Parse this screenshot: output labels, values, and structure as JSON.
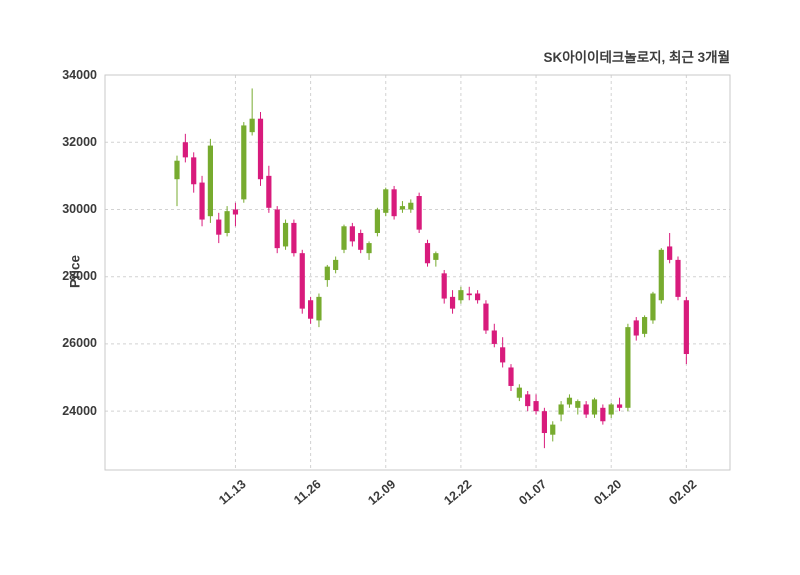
{
  "title": "SK아이이테크놀로지, 최근 3개월",
  "y_axis": {
    "label": "Price"
  },
  "chart_data": {
    "type": "candlestick",
    "title": "SK아이이테크놀로지, 최근 3개월",
    "ylabel": "Price",
    "ylim": [
      22250,
      34000
    ],
    "y_ticks": [
      24000,
      26000,
      28000,
      30000,
      32000,
      34000
    ],
    "x_tick_labels": [
      "11.13",
      "11.26",
      "12.09",
      "12.22",
      "01.07",
      "01.20",
      "02.02"
    ],
    "x_tick_indices": [
      7,
      16,
      25,
      34,
      43,
      52,
      61
    ],
    "grid": "dashed",
    "up_color": "#77ab2f",
    "down_color": "#d81b7c",
    "candles": [
      [
        30900,
        31600,
        30100,
        31450
      ],
      [
        32000,
        32250,
        31400,
        31550
      ],
      [
        31550,
        31700,
        30500,
        30750
      ],
      [
        30800,
        31000,
        29500,
        29700
      ],
      [
        29800,
        32100,
        29600,
        31900
      ],
      [
        29700,
        29900,
        29000,
        29250
      ],
      [
        29300,
        30100,
        29200,
        29950
      ],
      [
        30000,
        30200,
        29500,
        29850
      ],
      [
        30300,
        32600,
        30200,
        32500
      ],
      [
        32300,
        33600,
        32200,
        32700
      ],
      [
        32700,
        32900,
        30700,
        30900
      ],
      [
        31000,
        31300,
        29900,
        30050
      ],
      [
        30000,
        30100,
        28700,
        28850
      ],
      [
        28900,
        29700,
        28800,
        29600
      ],
      [
        29600,
        29700,
        28600,
        28700
      ],
      [
        28700,
        28800,
        26900,
        27050
      ],
      [
        27300,
        27400,
        26600,
        26750
      ],
      [
        26700,
        27500,
        26500,
        27400
      ],
      [
        27900,
        28350,
        27700,
        28300
      ],
      [
        28200,
        28600,
        28100,
        28500
      ],
      [
        28800,
        29550,
        28700,
        29500
      ],
      [
        29500,
        29600,
        28900,
        29050
      ],
      [
        29300,
        29400,
        28700,
        28800
      ],
      [
        28700,
        29050,
        28500,
        29000
      ],
      [
        29300,
        30050,
        29200,
        30000
      ],
      [
        29900,
        30650,
        29800,
        30600
      ],
      [
        30600,
        30700,
        29700,
        29800
      ],
      [
        30000,
        30250,
        29900,
        30100
      ],
      [
        30000,
        30300,
        29900,
        30200
      ],
      [
        30400,
        30500,
        29300,
        29400
      ],
      [
        29000,
        29100,
        28300,
        28400
      ],
      [
        28500,
        28750,
        28300,
        28700
      ],
      [
        28100,
        28200,
        27200,
        27350
      ],
      [
        27400,
        27600,
        26900,
        27050
      ],
      [
        27300,
        27700,
        27200,
        27600
      ],
      [
        27500,
        27700,
        27300,
        27450
      ],
      [
        27500,
        27600,
        27200,
        27300
      ],
      [
        27200,
        27300,
        26300,
        26400
      ],
      [
        26400,
        26600,
        25900,
        26000
      ],
      [
        25900,
        26200,
        25300,
        25450
      ],
      [
        25300,
        25400,
        24600,
        24750
      ],
      [
        24400,
        24800,
        24300,
        24700
      ],
      [
        24500,
        24600,
        24000,
        24150
      ],
      [
        24300,
        24500,
        23900,
        24000
      ],
      [
        24000,
        24100,
        22900,
        23350
      ],
      [
        23300,
        23700,
        23100,
        23600
      ],
      [
        23900,
        24300,
        23700,
        24200
      ],
      [
        24200,
        24500,
        24100,
        24400
      ],
      [
        24100,
        24350,
        23900,
        24300
      ],
      [
        24200,
        24300,
        23800,
        23900
      ],
      [
        23900,
        24400,
        23800,
        24350
      ],
      [
        24100,
        24200,
        23600,
        23700
      ],
      [
        23900,
        24250,
        23800,
        24200
      ],
      [
        24200,
        24400,
        24000,
        24100
      ],
      [
        24100,
        26600,
        24000,
        26500
      ],
      [
        26700,
        26800,
        26100,
        26250
      ],
      [
        26300,
        26850,
        26200,
        26800
      ],
      [
        26700,
        27550,
        26600,
        27500
      ],
      [
        27300,
        28850,
        27200,
        28800
      ],
      [
        28900,
        29300,
        28400,
        28500
      ],
      [
        28500,
        28600,
        27300,
        27400
      ],
      [
        27300,
        27400,
        25400,
        25700
      ]
    ]
  }
}
